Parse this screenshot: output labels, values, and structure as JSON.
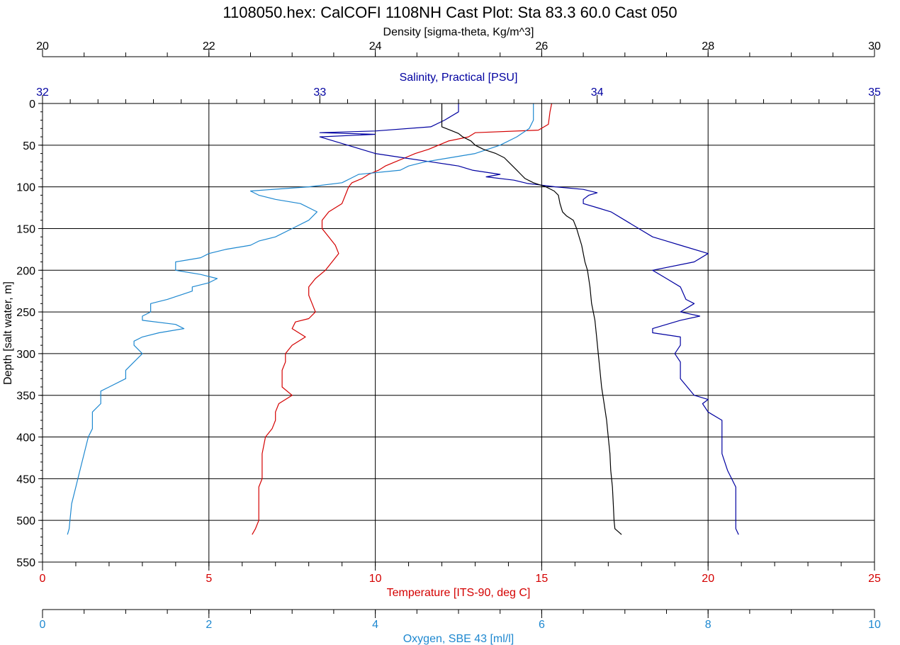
{
  "chart_data": {
    "type": "line",
    "title": "1108050.hex: CalCOFI 1108NH Cast Plot: Sta 83.3  60.0  Cast 050",
    "ylabel": "Depth [salt water, m]",
    "y_axis": {
      "range": [
        0,
        550
      ],
      "inverted": true,
      "ticks": [
        "0",
        "50",
        "100",
        "150",
        "200",
        "250",
        "300",
        "350",
        "400",
        "450",
        "500",
        "550"
      ]
    },
    "grid": true,
    "axes": [
      {
        "id": "density",
        "label": "Density [sigma-theta, Kg/m^3]",
        "position": "top",
        "range": [
          20,
          30
        ],
        "ticks": [
          "20",
          "22",
          "24",
          "26",
          "28",
          "30"
        ],
        "color": "#000000"
      },
      {
        "id": "salinity",
        "label": "Salinity, Practical [PSU]",
        "position": "top",
        "range": [
          32,
          35
        ],
        "ticks": [
          "32",
          "33",
          "34",
          "35"
        ],
        "color": "#0000a0"
      },
      {
        "id": "temperature",
        "label": "Temperature [ITS-90, deg C]",
        "position": "bottom",
        "range": [
          0,
          25
        ],
        "ticks": [
          "0",
          "5",
          "10",
          "15",
          "20",
          "25"
        ],
        "color": "#d40000"
      },
      {
        "id": "oxygen",
        "label": "Oxygen, SBE 43 [ml/l]",
        "position": "bottom",
        "range": [
          0,
          10
        ],
        "ticks": [
          "0",
          "2",
          "4",
          "6",
          "8",
          "10"
        ],
        "color": "#1e88d0"
      }
    ],
    "series": [
      {
        "axis": "temperature",
        "color": "#d40000",
        "points": [
          [
            0,
            15.3
          ],
          [
            10,
            15.25
          ],
          [
            25,
            15.2
          ],
          [
            32,
            14.9
          ],
          [
            35,
            13.0
          ],
          [
            40,
            12.8
          ],
          [
            45,
            12.2
          ],
          [
            50,
            11.9
          ],
          [
            55,
            11.6
          ],
          [
            60,
            11.2
          ],
          [
            65,
            10.9
          ],
          [
            70,
            10.6
          ],
          [
            75,
            10.3
          ],
          [
            80,
            10.1
          ],
          [
            85,
            9.8
          ],
          [
            90,
            9.6
          ],
          [
            95,
            9.3
          ],
          [
            100,
            9.2
          ],
          [
            110,
            9.1
          ],
          [
            120,
            9.0
          ],
          [
            130,
            8.6
          ],
          [
            140,
            8.4
          ],
          [
            150,
            8.4
          ],
          [
            160,
            8.6
          ],
          [
            170,
            8.8
          ],
          [
            180,
            8.9
          ],
          [
            190,
            8.7
          ],
          [
            200,
            8.5
          ],
          [
            210,
            8.2
          ],
          [
            220,
            8.0
          ],
          [
            230,
            8.0
          ],
          [
            240,
            8.1
          ],
          [
            250,
            8.2
          ],
          [
            258,
            8.0
          ],
          [
            262,
            7.6
          ],
          [
            270,
            7.5
          ],
          [
            280,
            7.9
          ],
          [
            290,
            7.5
          ],
          [
            300,
            7.3
          ],
          [
            310,
            7.3
          ],
          [
            320,
            7.2
          ],
          [
            330,
            7.2
          ],
          [
            340,
            7.2
          ],
          [
            350,
            7.5
          ],
          [
            355,
            7.3
          ],
          [
            360,
            7.1
          ],
          [
            370,
            7.0
          ],
          [
            380,
            7.0
          ],
          [
            390,
            6.9
          ],
          [
            400,
            6.7
          ],
          [
            420,
            6.6
          ],
          [
            440,
            6.6
          ],
          [
            450,
            6.6
          ],
          [
            460,
            6.5
          ],
          [
            470,
            6.5
          ],
          [
            480,
            6.5
          ],
          [
            500,
            6.5
          ],
          [
            510,
            6.4
          ],
          [
            517,
            6.3
          ]
        ]
      },
      {
        "axis": "salinity",
        "color": "#0000a0",
        "points": [
          [
            0,
            33.5
          ],
          [
            10,
            33.5
          ],
          [
            20,
            33.45
          ],
          [
            28,
            33.4
          ],
          [
            33,
            33.2
          ],
          [
            35,
            33.0
          ],
          [
            37,
            33.2
          ],
          [
            40,
            33.0
          ],
          [
            45,
            33.05
          ],
          [
            50,
            33.1
          ],
          [
            55,
            33.15
          ],
          [
            60,
            33.2
          ],
          [
            65,
            33.3
          ],
          [
            70,
            33.4
          ],
          [
            75,
            33.5
          ],
          [
            80,
            33.55
          ],
          [
            85,
            33.65
          ],
          [
            88,
            33.6
          ],
          [
            92,
            33.7
          ],
          [
            96,
            33.75
          ],
          [
            100,
            33.85
          ],
          [
            103,
            33.95
          ],
          [
            107,
            34.0
          ],
          [
            110,
            33.97
          ],
          [
            115,
            33.95
          ],
          [
            120,
            33.95
          ],
          [
            125,
            34.0
          ],
          [
            130,
            34.05
          ],
          [
            140,
            34.1
          ],
          [
            150,
            34.15
          ],
          [
            160,
            34.2
          ],
          [
            165,
            34.25
          ],
          [
            170,
            34.3
          ],
          [
            180,
            34.4
          ],
          [
            190,
            34.35
          ],
          [
            200,
            34.2
          ],
          [
            210,
            34.25
          ],
          [
            220,
            34.3
          ],
          [
            235,
            34.32
          ],
          [
            240,
            34.35
          ],
          [
            250,
            34.3
          ],
          [
            255,
            34.37
          ],
          [
            260,
            34.3
          ],
          [
            270,
            34.2
          ],
          [
            275,
            34.2
          ],
          [
            280,
            34.3
          ],
          [
            290,
            34.3
          ],
          [
            300,
            34.28
          ],
          [
            310,
            34.3
          ],
          [
            330,
            34.3
          ],
          [
            350,
            34.35
          ],
          [
            355,
            34.4
          ],
          [
            360,
            34.38
          ],
          [
            370,
            34.4
          ],
          [
            380,
            34.45
          ],
          [
            400,
            34.45
          ],
          [
            420,
            34.45
          ],
          [
            440,
            34.47
          ],
          [
            460,
            34.5
          ],
          [
            480,
            34.5
          ],
          [
            500,
            34.5
          ],
          [
            510,
            34.5
          ],
          [
            517,
            34.51
          ]
        ]
      },
      {
        "axis": "oxygen",
        "color": "#1e88d0",
        "points": [
          [
            0,
            5.9
          ],
          [
            10,
            5.9
          ],
          [
            20,
            5.9
          ],
          [
            30,
            5.85
          ],
          [
            40,
            5.7
          ],
          [
            50,
            5.5
          ],
          [
            60,
            5.2
          ],
          [
            65,
            4.9
          ],
          [
            70,
            4.6
          ],
          [
            75,
            4.4
          ],
          [
            80,
            4.3
          ],
          [
            85,
            3.8
          ],
          [
            90,
            3.7
          ],
          [
            95,
            3.6
          ],
          [
            100,
            3.2
          ],
          [
            105,
            2.5
          ],
          [
            110,
            2.6
          ],
          [
            115,
            2.8
          ],
          [
            120,
            3.1
          ],
          [
            130,
            3.3
          ],
          [
            140,
            3.2
          ],
          [
            150,
            3.0
          ],
          [
            160,
            2.8
          ],
          [
            165,
            2.6
          ],
          [
            170,
            2.5
          ],
          [
            175,
            2.2
          ],
          [
            180,
            2.0
          ],
          [
            185,
            1.9
          ],
          [
            190,
            1.6
          ],
          [
            200,
            1.6
          ],
          [
            205,
            1.9
          ],
          [
            210,
            2.1
          ],
          [
            215,
            2.0
          ],
          [
            220,
            1.8
          ],
          [
            225,
            1.8
          ],
          [
            235,
            1.5
          ],
          [
            240,
            1.3
          ],
          [
            245,
            1.3
          ],
          [
            250,
            1.3
          ],
          [
            255,
            1.2
          ],
          [
            260,
            1.2
          ],
          [
            265,
            1.6
          ],
          [
            270,
            1.7
          ],
          [
            275,
            1.4
          ],
          [
            280,
            1.2
          ],
          [
            285,
            1.1
          ],
          [
            290,
            1.1
          ],
          [
            300,
            1.2
          ],
          [
            310,
            1.1
          ],
          [
            320,
            1.0
          ],
          [
            330,
            1.0
          ],
          [
            340,
            0.8
          ],
          [
            345,
            0.7
          ],
          [
            350,
            0.7
          ],
          [
            360,
            0.7
          ],
          [
            370,
            0.6
          ],
          [
            380,
            0.6
          ],
          [
            390,
            0.6
          ],
          [
            400,
            0.55
          ],
          [
            420,
            0.5
          ],
          [
            440,
            0.45
          ],
          [
            460,
            0.4
          ],
          [
            480,
            0.35
          ],
          [
            500,
            0.33
          ],
          [
            510,
            0.32
          ],
          [
            517,
            0.3
          ]
        ]
      },
      {
        "axis": "density",
        "color": "#000000",
        "points": [
          [
            0,
            24.8
          ],
          [
            10,
            24.8
          ],
          [
            20,
            24.8
          ],
          [
            28,
            24.8
          ],
          [
            32,
            24.9
          ],
          [
            36,
            25.0
          ],
          [
            40,
            25.05
          ],
          [
            45,
            25.15
          ],
          [
            50,
            25.2
          ],
          [
            55,
            25.3
          ],
          [
            60,
            25.45
          ],
          [
            65,
            25.55
          ],
          [
            70,
            25.6
          ],
          [
            75,
            25.65
          ],
          [
            80,
            25.7
          ],
          [
            85,
            25.75
          ],
          [
            90,
            25.8
          ],
          [
            95,
            25.9
          ],
          [
            100,
            26.05
          ],
          [
            105,
            26.15
          ],
          [
            110,
            26.2
          ],
          [
            120,
            26.22
          ],
          [
            130,
            26.25
          ],
          [
            135,
            26.3
          ],
          [
            140,
            26.38
          ],
          [
            150,
            26.42
          ],
          [
            160,
            26.45
          ],
          [
            170,
            26.48
          ],
          [
            180,
            26.5
          ],
          [
            190,
            26.52
          ],
          [
            200,
            26.55
          ],
          [
            220,
            26.58
          ],
          [
            240,
            26.6
          ],
          [
            250,
            26.62
          ],
          [
            260,
            26.64
          ],
          [
            280,
            26.66
          ],
          [
            300,
            26.68
          ],
          [
            320,
            26.7
          ],
          [
            340,
            26.72
          ],
          [
            360,
            26.75
          ],
          [
            380,
            26.78
          ],
          [
            400,
            26.8
          ],
          [
            420,
            26.82
          ],
          [
            440,
            26.83
          ],
          [
            460,
            26.85
          ],
          [
            480,
            26.86
          ],
          [
            500,
            26.87
          ],
          [
            510,
            26.88
          ],
          [
            517,
            26.96
          ]
        ]
      }
    ]
  }
}
